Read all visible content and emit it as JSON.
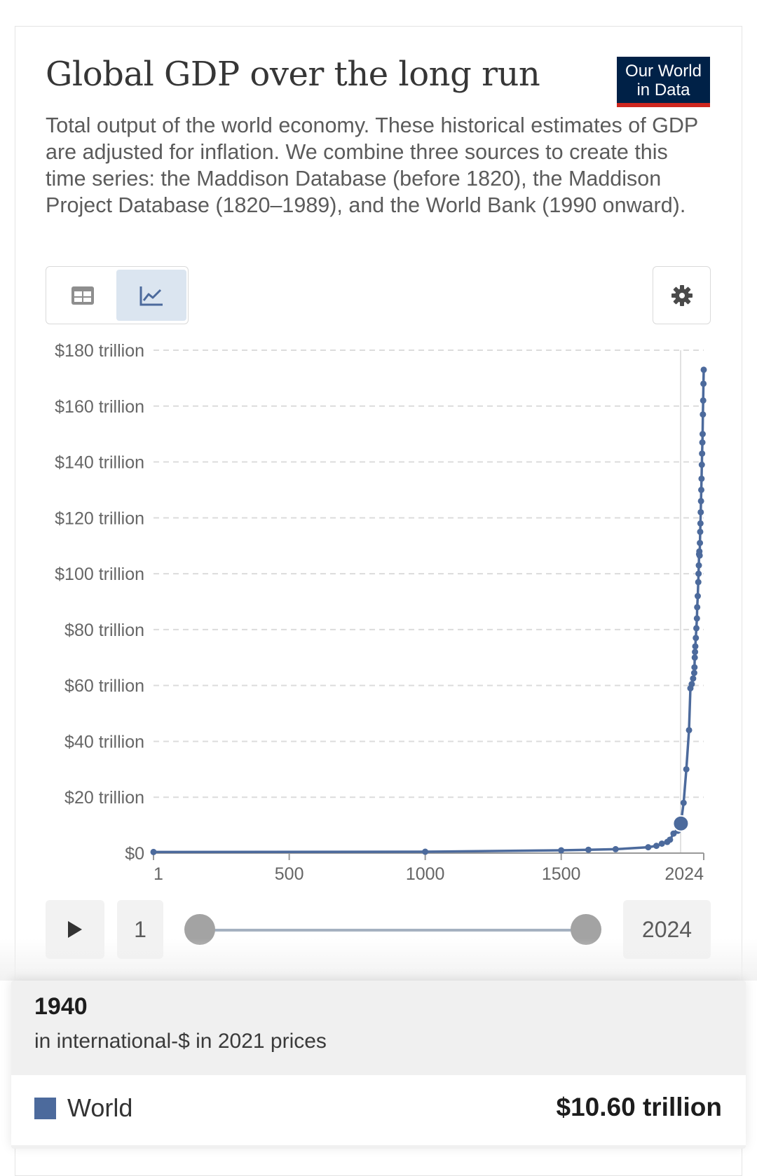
{
  "header": {
    "title": "Global GDP over the long run",
    "logo_line1": "Our World",
    "logo_line2": "in Data",
    "subtitle": "Total output of the world economy. These historical estimates of GDP are adjusted for inflation. We combine three sources to create this time series: the Maddison Database (before 1820), the Maddison Project Database (1820–1989), and the World Bank (1990 onward)."
  },
  "controls": {
    "table_icon": "table-icon",
    "chart_icon": "line-chart-icon",
    "settings_icon": "gear-icon",
    "active_view": "chart"
  },
  "timeline": {
    "play_icon": "play-icon",
    "start_label": "1",
    "end_label": "2024"
  },
  "tooltip": {
    "year": "1940",
    "unit": "in international-$ in 2021 prices",
    "entity": "World",
    "value": "$10.60 trillion",
    "swatch_color": "#4c6a9c"
  },
  "chart_data": {
    "type": "line",
    "x_domain": [
      1,
      2024
    ],
    "ylim": [
      0,
      180
    ],
    "y_unit": "trillion international-$ (2021 prices)",
    "grid": "horizontal dashed",
    "yticks": [
      {
        "v": 0,
        "label": "$0"
      },
      {
        "v": 20,
        "label": "$20 trillion"
      },
      {
        "v": 40,
        "label": "$40 trillion"
      },
      {
        "v": 60,
        "label": "$60 trillion"
      },
      {
        "v": 80,
        "label": "$80 trillion"
      },
      {
        "v": 100,
        "label": "$100 trillion"
      },
      {
        "v": 120,
        "label": "$120 trillion"
      },
      {
        "v": 140,
        "label": "$140 trillion"
      },
      {
        "v": 160,
        "label": "$160 trillion"
      },
      {
        "v": 180,
        "label": "$180 trillion"
      }
    ],
    "xticks": [
      {
        "v": 1,
        "label": "1"
      },
      {
        "v": 500,
        "label": "500"
      },
      {
        "v": 1000,
        "label": "1000"
      },
      {
        "v": 1500,
        "label": "1500"
      },
      {
        "v": 2024,
        "label": "2024"
      }
    ],
    "highlight": {
      "x": 1940,
      "y": 10.6
    },
    "series": [
      {
        "name": "World",
        "color": "#4c6a9c",
        "x": [
          1,
          1000,
          1500,
          1600,
          1700,
          1820,
          1850,
          1870,
          1890,
          1900,
          1913,
          1929,
          1940,
          1950,
          1960,
          1970,
          1975,
          1980,
          1985,
          1989,
          1990,
          1991,
          1992,
          1993,
          1995,
          1997,
          1999,
          2000,
          2002,
          2004,
          2005,
          2006,
          2007,
          2008,
          2009,
          2010,
          2011,
          2012,
          2013,
          2014,
          2015,
          2016,
          2017,
          2018,
          2019,
          2020,
          2021,
          2022,
          2023,
          2024
        ],
        "y": [
          0.4,
          0.5,
          1.0,
          1.2,
          1.4,
          2.1,
          2.6,
          3.4,
          4.0,
          4.8,
          7.0,
          8.0,
          10.6,
          18.0,
          30.0,
          44.0,
          59.0,
          60.5,
          62.5,
          64.5,
          66.5,
          70.0,
          72.0,
          74.0,
          77.0,
          80.5,
          84.0,
          88.0,
          92.0,
          97.0,
          100.0,
          103.0,
          107.0,
          108.0,
          106.5,
          111.0,
          115.0,
          118.0,
          122.0,
          126.0,
          130.0,
          134.0,
          139.0,
          143.0,
          147.0,
          150.0,
          157.0,
          162.0,
          168.0,
          173.0
        ]
      }
    ]
  }
}
